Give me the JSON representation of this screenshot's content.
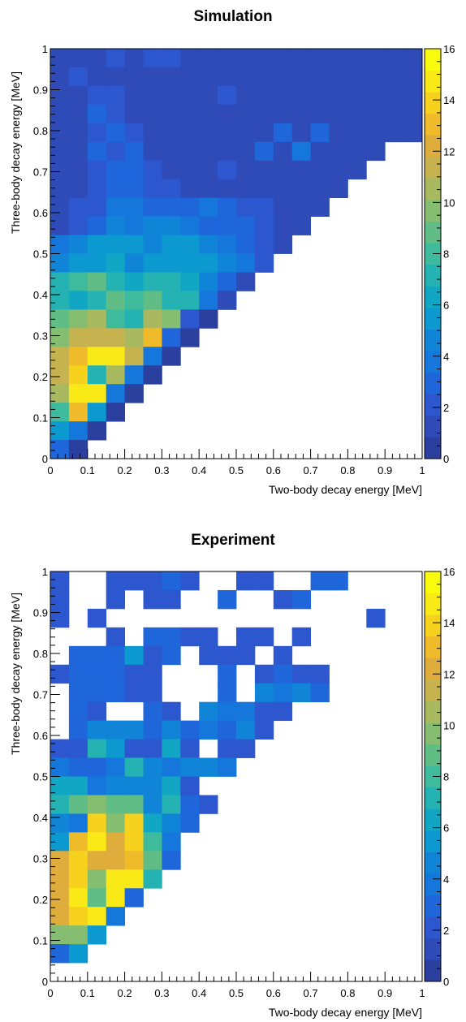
{
  "palette": [
    "#2b3f9e",
    "#2e4bb8",
    "#2c57cf",
    "#1f66db",
    "#1576dc",
    "#1085d8",
    "#0b99d0",
    "#11a7c4",
    "#24b3b2",
    "#3eba9c",
    "#60bd85",
    "#85bd71",
    "#a8b95f",
    "#c6b34f",
    "#dfad3c",
    "#f0bb2a",
    "#f6d21e",
    "#f9ea17",
    "#f9fb0e"
  ],
  "figures": [
    {
      "title": "Simulation",
      "xlabel": "Two-body decay energy [MeV]",
      "ylabel": "Three-body decay energy [MeV]",
      "x_ticks": [
        "0",
        "0.1",
        "0.2",
        "0.3",
        "0.4",
        "0.5",
        "0.6",
        "0.7",
        "0.8",
        "0.9",
        "1"
      ],
      "y_ticks": [
        "0",
        "0.1",
        "0.2",
        "0.3",
        "0.4",
        "0.5",
        "0.6",
        "0.7",
        "0.8",
        "0.9",
        "1"
      ],
      "colorbar_ticks": [
        "0",
        "2",
        "4",
        "6",
        "8",
        "10",
        "12",
        "14",
        "16"
      ]
    },
    {
      "title": "Experiment",
      "xlabel": "Two-body decay energy [MeV]",
      "ylabel": "Three-body decay energy [MeV]",
      "x_ticks": [
        "0",
        "0.1",
        "0.2",
        "0.3",
        "0.4",
        "0.5",
        "0.6",
        "0.7",
        "0.8",
        "0.9",
        "1"
      ],
      "y_ticks": [
        "0",
        "0.1",
        "0.2",
        "0.3",
        "0.4",
        "0.5",
        "0.6",
        "0.7",
        "0.8",
        "0.9",
        "1"
      ],
      "colorbar_ticks": [
        "0",
        "2",
        "4",
        "6",
        "8",
        "10",
        "12",
        "14",
        "16"
      ]
    }
  ],
  "chart_data": [
    {
      "type": "heatmap",
      "title": "Simulation",
      "xlabel": "Two-body decay energy [MeV]",
      "ylabel": "Three-body decay energy [MeV]",
      "xlim": [
        0,
        1
      ],
      "ylim": [
        0,
        1
      ],
      "bin_width": 0.05,
      "zlim": [
        0,
        16
      ],
      "rows_top_to_bottom": [
        [
          1,
          1,
          1,
          2,
          1,
          2,
          2,
          1,
          1,
          1,
          1,
          1,
          1,
          1,
          1,
          1,
          1,
          1,
          1,
          1
        ],
        [
          1,
          2,
          1,
          1,
          1,
          1,
          1,
          1,
          1,
          1,
          1,
          1,
          1,
          1,
          1,
          1,
          1,
          1,
          1,
          1
        ],
        [
          1,
          1,
          2,
          2,
          1,
          1,
          1,
          1,
          1,
          2,
          1,
          1,
          1,
          1,
          1,
          1,
          1,
          1,
          1,
          1
        ],
        [
          1,
          1,
          3,
          2,
          1,
          1,
          1,
          1,
          1,
          1,
          1,
          1,
          1,
          1,
          1,
          1,
          1,
          1,
          1,
          1
        ],
        [
          1,
          1,
          2,
          3,
          2,
          1,
          1,
          1,
          1,
          1,
          1,
          1,
          3,
          1,
          3,
          1,
          1,
          1,
          1,
          1
        ],
        [
          1,
          1,
          3,
          2,
          3,
          1,
          1,
          1,
          1,
          1,
          1,
          3,
          1,
          4,
          1,
          1,
          1,
          1
        ],
        [
          1,
          1,
          2,
          3,
          3,
          2,
          1,
          1,
          1,
          2,
          1,
          1,
          1,
          1,
          1,
          1,
          1
        ],
        [
          1,
          1,
          2,
          3,
          3,
          2,
          2,
          1,
          1,
          1,
          1,
          1,
          1,
          1,
          1,
          1
        ],
        [
          1,
          2,
          2,
          4,
          4,
          3,
          3,
          3,
          4,
          3,
          2,
          2,
          1,
          1,
          1
        ],
        [
          1,
          2,
          3,
          5,
          4,
          5,
          5,
          4,
          3,
          3,
          3,
          2,
          1,
          1
        ],
        [
          4,
          5,
          6,
          6,
          6,
          5,
          6,
          6,
          5,
          4,
          3,
          2,
          1
        ],
        [
          5,
          6,
          6,
          7,
          5,
          6,
          6,
          6,
          6,
          5,
          4,
          2
        ],
        [
          8,
          9,
          10,
          8,
          7,
          8,
          8,
          7,
          5,
          3,
          1
        ],
        [
          8,
          7,
          8,
          10,
          9,
          10,
          8,
          8,
          4,
          1
        ],
        [
          10,
          11,
          12,
          9,
          8,
          12,
          11,
          2,
          0
        ],
        [
          11,
          13,
          13,
          13,
          12,
          15,
          3,
          0
        ],
        [
          13,
          15,
          17,
          17,
          13,
          4,
          0
        ],
        [
          13,
          16,
          8,
          12,
          4,
          0
        ],
        [
          12,
          17,
          17,
          4,
          0
        ],
        [
          9,
          15,
          6,
          0
        ],
        [
          6,
          4,
          0
        ],
        [
          3,
          0
        ]
      ],
      "notes": "Row i (from top) covers three-body energy from 1.0 - 0.05*i down; each value is a colour index on the 0-16 scale shown by the colour bar (index*16/18)."
    },
    {
      "type": "heatmap",
      "title": "Experiment",
      "xlabel": "Two-body decay energy [MeV]",
      "ylabel": "Three-body decay energy [MeV]",
      "xlim": [
        0,
        1
      ],
      "ylim": [
        0,
        1
      ],
      "bin_width": 0.05,
      "zlim": [
        0,
        16
      ],
      "rows_top_to_bottom": [
        [
          2,
          null,
          null,
          2,
          2,
          2,
          3,
          2,
          null,
          null,
          2,
          2,
          null,
          null,
          3,
          3,
          null,
          null,
          null,
          null
        ],
        [
          2,
          null,
          null,
          2,
          null,
          2,
          2,
          null,
          null,
          3,
          null,
          null,
          2,
          3,
          null,
          null,
          null,
          null,
          null,
          null
        ],
        [
          2,
          null,
          2,
          null,
          null,
          null,
          null,
          null,
          null,
          null,
          null,
          null,
          null,
          null,
          null,
          null,
          null,
          2,
          null,
          null
        ],
        [
          null,
          null,
          null,
          2,
          null,
          3,
          3,
          2,
          2,
          null,
          2,
          2,
          null,
          2,
          null,
          null,
          null,
          null,
          null,
          null
        ],
        [
          null,
          3,
          3,
          3,
          6,
          2,
          3,
          null,
          2,
          2,
          2,
          null,
          2,
          null,
          null,
          null,
          null,
          null,
          null,
          null
        ],
        [
          2,
          3,
          3,
          3,
          2,
          2,
          null,
          null,
          null,
          3,
          null,
          2,
          3,
          2,
          2,
          null,
          null,
          null,
          null,
          null
        ],
        [
          null,
          3,
          3,
          3,
          2,
          2,
          null,
          null,
          null,
          3,
          null,
          5,
          4,
          5,
          3,
          null,
          null,
          null,
          null,
          null
        ],
        [
          null,
          3,
          2,
          null,
          null,
          3,
          2,
          null,
          5,
          4,
          4,
          2,
          2,
          null,
          null,
          null,
          null,
          null,
          null,
          null
        ],
        [
          null,
          3,
          5,
          5,
          5,
          3,
          5,
          3,
          4,
          3,
          5,
          2,
          null,
          null,
          null,
          null,
          null,
          null,
          null,
          null
        ],
        [
          2,
          2,
          8,
          6,
          2,
          2,
          7,
          2,
          null,
          2,
          2,
          null,
          null,
          null,
          null,
          null,
          null,
          null,
          null,
          null
        ],
        [
          4,
          3,
          3,
          4,
          8,
          5,
          4,
          5,
          5,
          4,
          null,
          null,
          null,
          null,
          null,
          null,
          null,
          null,
          null,
          null
        ],
        [
          7,
          7,
          4,
          5,
          5,
          5,
          7,
          2,
          null,
          null,
          null,
          null,
          null,
          null,
          null,
          null,
          null,
          null,
          null,
          null
        ],
        [
          8,
          10,
          11,
          10,
          10,
          5,
          8,
          3,
          2,
          null,
          null,
          null,
          null,
          null,
          null,
          null,
          null,
          null,
          null,
          null
        ],
        [
          5,
          4,
          16,
          11,
          16,
          7,
          5,
          3,
          null,
          null,
          null,
          null,
          null,
          null,
          null,
          null,
          null,
          null,
          null,
          null
        ],
        [
          6,
          15,
          17,
          14,
          16,
          9,
          4,
          null,
          null,
          null,
          null,
          null,
          null,
          null,
          null,
          null,
          null,
          null,
          null,
          null
        ],
        [
          14,
          16,
          14,
          14,
          15,
          10,
          3,
          null,
          null,
          null,
          null,
          null,
          null,
          null,
          null,
          null,
          null,
          null,
          null,
          null
        ],
        [
          14,
          16,
          11,
          17,
          17,
          8,
          null,
          null,
          null,
          null,
          null,
          null,
          null,
          null,
          null,
          null,
          null,
          null,
          null,
          null
        ],
        [
          14,
          17,
          10,
          17,
          3,
          null,
          null,
          null,
          null,
          null,
          null,
          null,
          null,
          null,
          null,
          null,
          null,
          null,
          null,
          null
        ],
        [
          14,
          16,
          17,
          4,
          null,
          null,
          null,
          null,
          null,
          null,
          null,
          null,
          null,
          null,
          null,
          null,
          null,
          null,
          null,
          null
        ],
        [
          11,
          11,
          6,
          null,
          null,
          null,
          null,
          null,
          null,
          null,
          null,
          null,
          null,
          null,
          null,
          null,
          null,
          null,
          null,
          null
        ],
        [
          3,
          6,
          null,
          null,
          null,
          null,
          null,
          null,
          null,
          null,
          null,
          null,
          null,
          null,
          null,
          null,
          null,
          null,
          null,
          null
        ],
        [
          null,
          null,
          null,
          null,
          null,
          null,
          null,
          null,
          null,
          null,
          null,
          null,
          null,
          null,
          null,
          null,
          null,
          null,
          null,
          null
        ]
      ],
      "notes": "null = empty bin (white)."
    }
  ]
}
